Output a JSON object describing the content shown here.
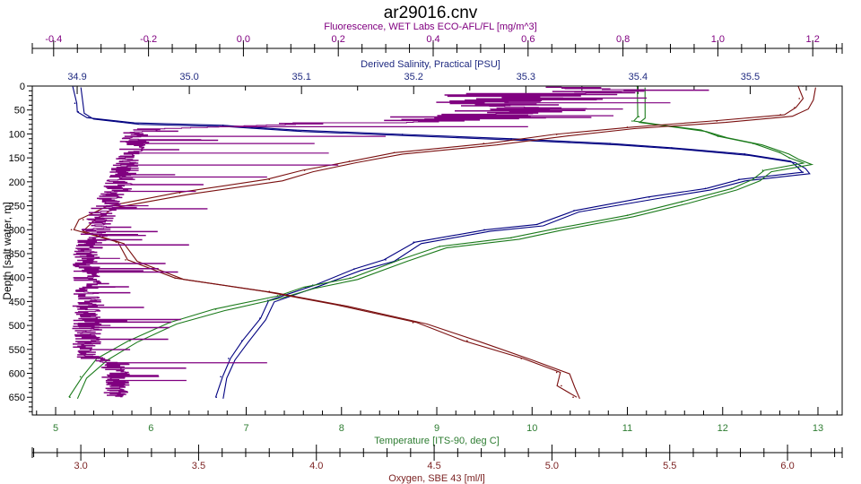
{
  "chart_data": {
    "type": "line",
    "title": "ar29016.cnv",
    "y_axis": {
      "label": "Depth [salt water, m]",
      "range": [
        0,
        687
      ],
      "inverted": true,
      "ticks": [
        0,
        50,
        100,
        150,
        200,
        250,
        300,
        350,
        400,
        450,
        500,
        550,
        600,
        650
      ],
      "color": "#000000"
    },
    "x_axes": [
      {
        "id": "fluorescence",
        "label": "Fluorescence, WET Labs ECO-AFL/FL [mg/m^3]",
        "position": "top-outer",
        "range": [
          -0.445,
          1.262
        ],
        "ticks": [
          -0.4,
          -0.2,
          0.0,
          0.2,
          0.4,
          0.6,
          0.8,
          1.0,
          1.2
        ],
        "tick_labels": [
          "-0.4",
          "-0.2",
          "0.0",
          "0.2",
          "0.4",
          "0.6",
          "0.8",
          "1.0",
          "1.2"
        ],
        "minor_step": 0.05,
        "color": "#800080"
      },
      {
        "id": "salinity",
        "label": "Derived Salinity, Practical [PSU]",
        "position": "top-inner",
        "range": [
          34.86,
          35.582
        ],
        "ticks": [
          34.9,
          35.0,
          35.1,
          35.2,
          35.3,
          35.4,
          35.5
        ],
        "tick_labels": [
          "34.9",
          "35.0",
          "35.1",
          "35.2",
          "35.3",
          "35.4",
          "35.5"
        ],
        "minor_step": 0.05,
        "color": "#1f2a80"
      },
      {
        "id": "temperature",
        "label": "Temperature [ITS-90, deg C]",
        "position": "bottom-inner",
        "range": [
          4.755,
          13.254
        ],
        "ticks": [
          5,
          6,
          7,
          8,
          9,
          10,
          11,
          12,
          13
        ],
        "tick_labels": [
          "5",
          "6",
          "7",
          "8",
          "9",
          "10",
          "11",
          "12",
          "13"
        ],
        "minor_step": 0.2,
        "color": "#2e7d32"
      },
      {
        "id": "oxygen",
        "label": "Oxygen, SBE 43 [ml/l]",
        "position": "bottom-outer",
        "range": [
          2.794,
          6.232
        ],
        "ticks": [
          3.0,
          3.5,
          4.0,
          4.5,
          5.0,
          5.5,
          6.0
        ],
        "tick_labels": [
          "3.0",
          "3.5",
          "4.0",
          "4.5",
          "5.0",
          "5.5",
          "6.0"
        ],
        "minor_step": 0.1,
        "color": "#7a1f1f"
      }
    ],
    "series": [
      {
        "name": "Derived Salinity, Practical [PSU]",
        "axis": "salinity",
        "color": "#000080",
        "depth": [
          0,
          36,
          54,
          66,
          77,
          82,
          92,
          101,
          110,
          120,
          129,
          142,
          157,
          169,
          180,
          195,
          214,
          232,
          260,
          289,
          300,
          326,
          363,
          382,
          416,
          448,
          485,
          532,
          569,
          607,
          650
        ],
        "values": [
          34.898,
          34.898,
          34.901,
          34.91,
          34.95,
          35.03,
          35.095,
          35.19,
          35.287,
          35.375,
          35.43,
          35.495,
          35.535,
          35.543,
          35.547,
          35.49,
          35.46,
          35.41,
          35.343,
          35.31,
          35.263,
          35.2,
          35.175,
          35.147,
          35.11,
          35.07,
          35.063,
          35.047,
          35.035,
          35.028,
          35.024
        ]
      },
      {
        "name": "Temperature [ITS-90, deg C]",
        "axis": "temperature",
        "color": "#1a7a1a",
        "depth": [
          0,
          64,
          73,
          82,
          92,
          105,
          120,
          139,
          150,
          161,
          176,
          195,
          214,
          242,
          270,
          298,
          317,
          335,
          363,
          401,
          420,
          438,
          466,
          494,
          532,
          569,
          607,
          650
        ],
        "values": [
          11.1,
          11.12,
          11.05,
          11.38,
          11.76,
          11.95,
          12.32,
          12.6,
          12.7,
          12.84,
          12.42,
          12.32,
          12.09,
          11.57,
          11.0,
          10.25,
          9.78,
          9.03,
          8.6,
          8.09,
          7.62,
          7.33,
          6.68,
          6.2,
          5.78,
          5.45,
          5.26,
          5.15
        ]
      },
      {
        "name": "Oxygen, SBE 43 [ml/l]",
        "axis": "oxygen",
        "color": "#7a0f0f",
        "depth": [
          0,
          26,
          45,
          60,
          73,
          86,
          101,
          120,
          139,
          157,
          176,
          195,
          223,
          251,
          279,
          300,
          326,
          363,
          401,
          429,
          457,
          494,
          532,
          569,
          598,
          626,
          650
        ],
        "values": [
          6.065,
          6.05,
          6.03,
          5.97,
          5.7,
          5.32,
          5.02,
          4.71,
          4.33,
          4.14,
          3.95,
          3.8,
          3.42,
          3.11,
          3.01,
          2.96,
          3.15,
          3.19,
          3.4,
          3.8,
          4.1,
          4.41,
          4.64,
          4.87,
          5.02,
          5.04,
          5.09
        ]
      },
      {
        "name": "Fluorescence, WET Labs ECO-AFL/FL [mg/m^3]",
        "axis": "fluorescence",
        "color": "#800080",
        "depth": [
          2,
          10,
          20,
          30,
          40,
          50,
          60,
          70,
          80,
          90,
          100,
          125,
          150,
          175,
          200,
          225,
          250,
          275,
          300,
          350,
          400,
          450,
          500,
          550,
          570,
          580,
          600,
          625,
          650
        ],
        "values": [
          0.62,
          0.79,
          0.55,
          0.6,
          0.5,
          0.58,
          0.45,
          0.52,
          0.1,
          -0.2,
          -0.23,
          -0.23,
          -0.24,
          -0.25,
          -0.26,
          -0.27,
          -0.29,
          -0.3,
          -0.31,
          -0.33,
          -0.33,
          -0.33,
          -0.33,
          -0.33,
          -0.32,
          -0.27,
          -0.27,
          -0.27,
          -0.27
        ],
        "spikes_depth": [
          25,
          35,
          48,
          62,
          85,
          105,
          120,
          140,
          165,
          190,
          220,
          250,
          300,
          360,
          420,
          500,
          578,
          615
        ],
        "spikes_value": [
          0.85,
          0.9,
          0.8,
          0.78,
          0.6,
          0.3,
          0.15,
          0.18,
          0.2,
          0.05,
          -0.1,
          -0.2,
          -0.28,
          -0.26,
          -0.27,
          -0.28,
          0.05,
          -0.12
        ]
      }
    ],
    "grid": false,
    "legend": "none"
  }
}
